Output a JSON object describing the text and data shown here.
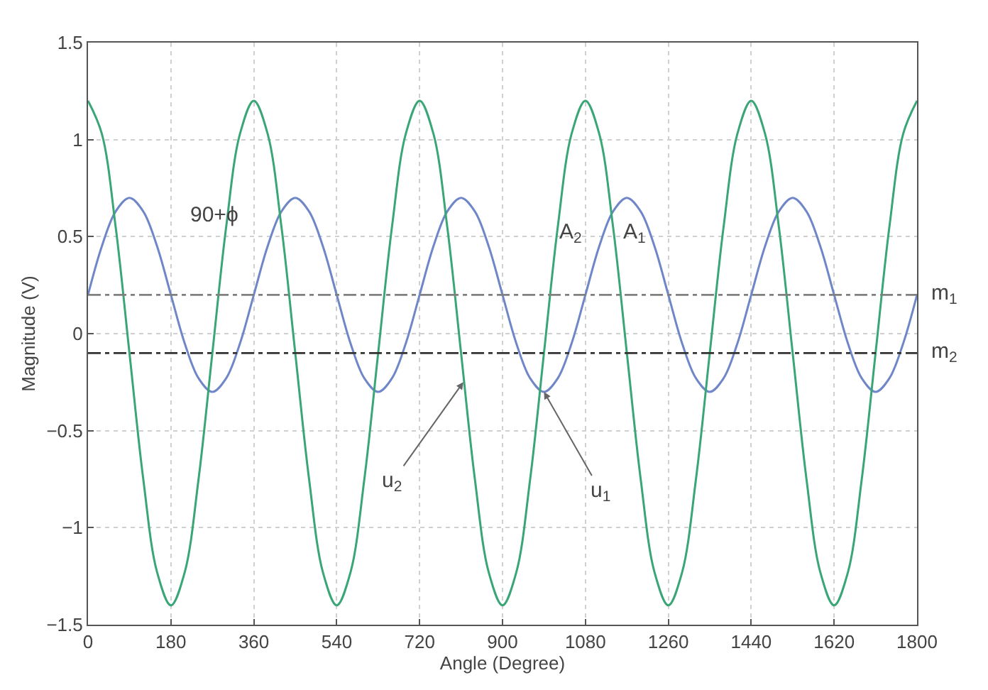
{
  "chart_data": {
    "type": "line",
    "xlabel": "Angle (Degree)",
    "ylabel": "Magnitude (V)",
    "x": [
      0,
      30,
      60,
      90,
      120,
      150,
      180,
      210,
      240,
      270,
      300,
      330,
      360,
      390,
      420,
      450,
      480,
      510,
      540,
      570,
      600,
      630,
      660,
      690,
      720,
      750,
      780,
      810,
      840,
      870,
      900,
      930,
      960,
      990,
      1020,
      1050,
      1080,
      1110,
      1140,
      1170,
      1200,
      1230,
      1260,
      1290,
      1320,
      1350,
      1380,
      1410,
      1440,
      1470,
      1500,
      1530,
      1560,
      1590,
      1620,
      1650,
      1680,
      1710,
      1740,
      1770,
      1800
    ],
    "series": [
      {
        "color": "#6f86c8",
        "values": [
          0.2,
          0.45,
          0.63,
          0.7,
          0.63,
          0.45,
          0.2,
          -0.05,
          -0.23,
          -0.3,
          -0.23,
          -0.05,
          0.2,
          0.45,
          0.63,
          0.7,
          0.63,
          0.45,
          0.2,
          -0.05,
          -0.23,
          -0.3,
          -0.23,
          -0.05,
          0.2,
          0.45,
          0.63,
          0.7,
          0.63,
          0.45,
          0.2,
          -0.05,
          -0.23,
          -0.3,
          -0.23,
          -0.05,
          0.2,
          0.45,
          0.63,
          0.7,
          0.63,
          0.45,
          0.2,
          -0.05,
          -0.23,
          -0.3,
          -0.23,
          -0.05,
          0.2,
          0.45,
          0.63,
          0.7,
          0.63,
          0.45,
          0.2,
          -0.05,
          -0.23,
          -0.3,
          -0.23,
          -0.05,
          0.2
        ]
      },
      {
        "color": "#3aa676",
        "values": [
          1.2,
          1.03,
          0.55,
          -0.1,
          -0.75,
          -1.23,
          -1.4,
          -1.23,
          -0.75,
          -0.1,
          0.55,
          1.03,
          1.2,
          1.03,
          0.55,
          -0.1,
          -0.75,
          -1.23,
          -1.4,
          -1.23,
          -0.75,
          -0.1,
          0.55,
          1.03,
          1.2,
          1.03,
          0.55,
          -0.1,
          -0.75,
          -1.23,
          -1.4,
          -1.23,
          -0.75,
          -0.1,
          0.55,
          1.03,
          1.2,
          1.03,
          0.55,
          -0.1,
          -0.75,
          -1.23,
          -1.4,
          -1.23,
          -0.75,
          -0.1,
          0.55,
          1.03,
          1.2,
          1.03,
          0.55,
          -0.1,
          -0.75,
          -1.23,
          -1.4,
          -1.23,
          -0.75,
          -0.1,
          0.55,
          1.03,
          1.2
        ]
      }
    ],
    "xlim": [
      0,
      1800
    ],
    "xticks": [
      0,
      180,
      360,
      540,
      720,
      900,
      1080,
      1260,
      1440,
      1620,
      1800
    ],
    "ylim": [
      -1.5,
      1.5
    ],
    "yticks": [
      {
        "value": -1.5,
        "label": "−1.5"
      },
      {
        "value": -1,
        "label": "−1"
      },
      {
        "value": -0.5,
        "label": "−0.5"
      },
      0,
      0.5,
      1,
      1.5
    ],
    "ref_lines": [
      {
        "axis": "y",
        "value": 0.2,
        "label": "m$_{1}$",
        "color": "#808080",
        "line_style": "dashdot"
      },
      {
        "axis": "y",
        "value": -0.1,
        "label": "m$_{2}$",
        "color": "#333333",
        "line_style": "dashdot"
      }
    ],
    "annotations": [
      "90+ϕ",
      "A$_{2}$",
      "A$_{1}$",
      {
        "text": "u$_{2}$",
        "x": 815,
        "y": -0.25
      },
      {
        "text": "u$_{1}$",
        "x": 990,
        "y": -0.3
      }
    ],
    "grid": true,
    "marker": "none",
    "line_style": "solid"
  }
}
